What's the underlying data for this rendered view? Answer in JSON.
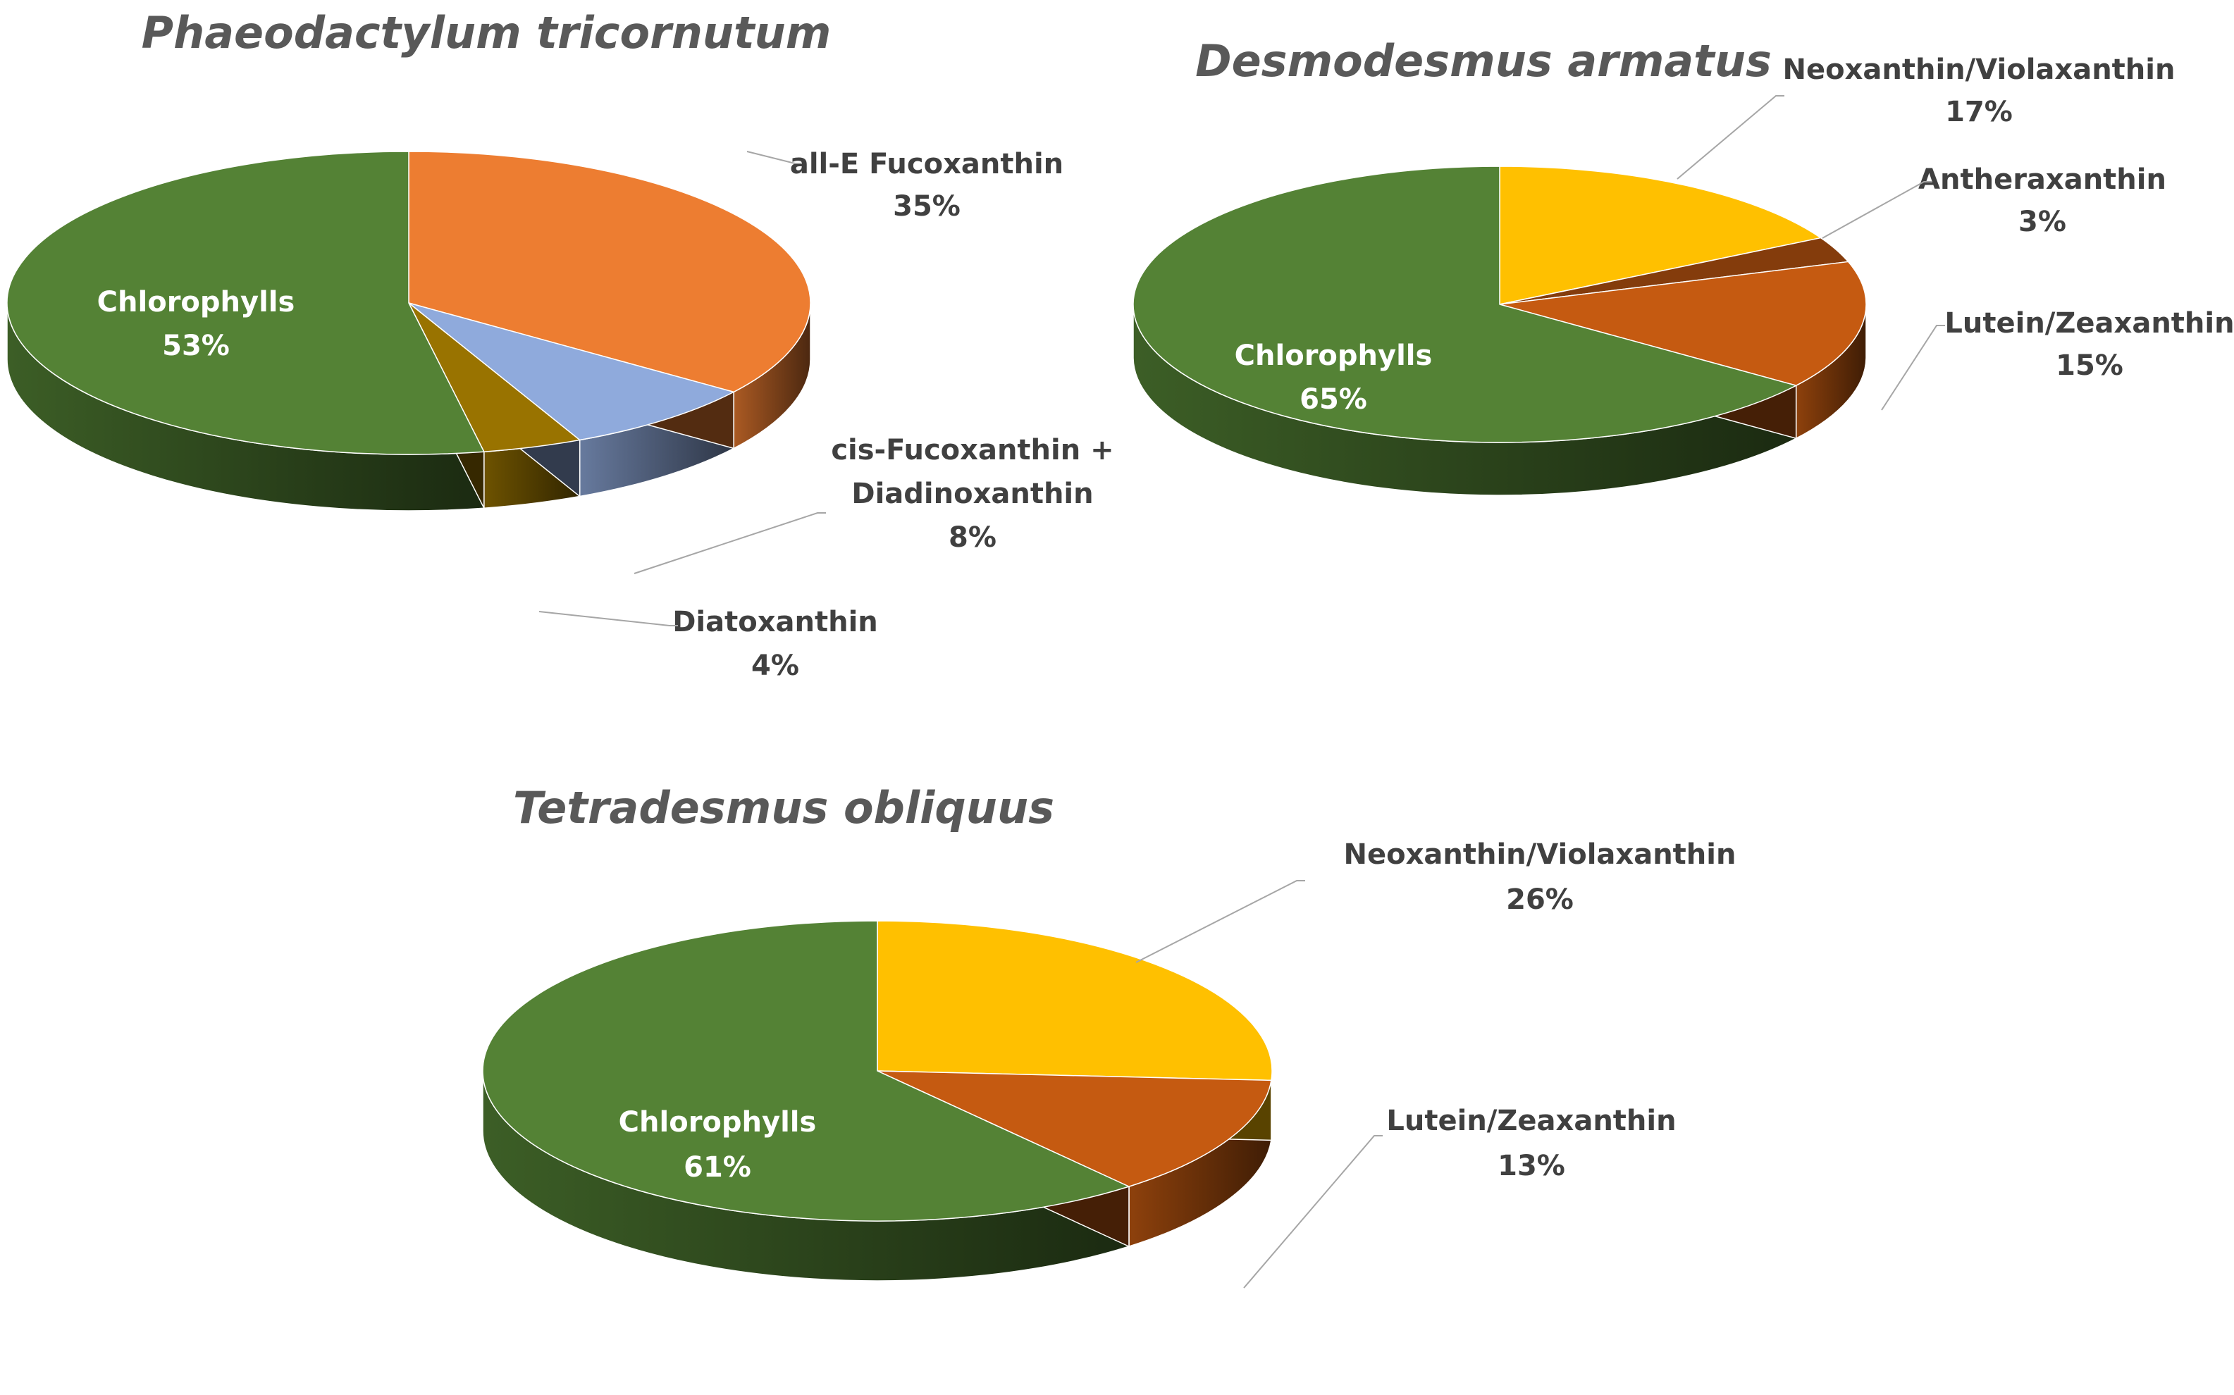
{
  "chart_data": [
    {
      "type": "pie",
      "title": "Phaeodactylum tricornutum",
      "slices": [
        {
          "label": "all-E Fucoxanthin",
          "value": 35,
          "value_label": "35%",
          "color": "#ED7D31"
        },
        {
          "label": "cis-Fucoxanthin + Diadinoxanthin",
          "label_lines": [
            "cis-Fucoxanthin +",
            "Diadinoxanthin"
          ],
          "value": 8,
          "value_label": "8%",
          "color": "#8FAADC"
        },
        {
          "label": "Diatoxanthin",
          "value": 4,
          "value_label": "4%",
          "color": "#997300"
        },
        {
          "label": "Chlorophylls",
          "value": 53,
          "value_label": "53%",
          "color": "#548235"
        }
      ]
    },
    {
      "type": "pie",
      "title": "Desmodesmus armatus",
      "slices": [
        {
          "label": "Neoxanthin/Violaxanthin",
          "value": 17,
          "value_label": "17%",
          "color": "#FFC000"
        },
        {
          "label": "Antheraxanthin",
          "value": 3,
          "value_label": "3%",
          "color": "#843C0C"
        },
        {
          "label": "Lutein/Zeaxanthin",
          "value": 15,
          "value_label": "15%",
          "color": "#C55A11"
        },
        {
          "label": "Chlorophylls",
          "value": 65,
          "value_label": "65%",
          "color": "#548235"
        }
      ]
    },
    {
      "type": "pie",
      "title": "Tetradesmus obliquus",
      "slices": [
        {
          "label": "Neoxanthin/Violaxanthin",
          "value": 26,
          "value_label": "26%",
          "color": "#FFC000"
        },
        {
          "label": "Lutein/Zeaxanthin",
          "value": 13,
          "value_label": "13%",
          "color": "#C55A11"
        },
        {
          "label": "Chlorophylls",
          "value": 61,
          "value_label": "61%",
          "color": "#548235"
        }
      ]
    }
  ]
}
